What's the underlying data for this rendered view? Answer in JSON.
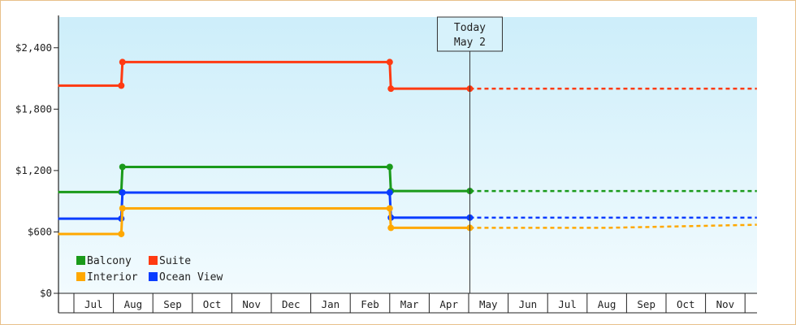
{
  "chart_data": {
    "type": "line",
    "step": true,
    "y_ticks": [
      {
        "value": 0,
        "label": "$0"
      },
      {
        "value": 600,
        "label": "$600"
      },
      {
        "value": 1200,
        "label": "$1,200"
      },
      {
        "value": 1800,
        "label": "$1,800"
      },
      {
        "value": 2400,
        "label": "$2,400"
      }
    ],
    "ylim": [
      0,
      2700
    ],
    "months": [
      "Jul",
      "Aug",
      "Sep",
      "Oct",
      "Nov",
      "Dec",
      "Jan",
      "Feb",
      "Mar",
      "Apr",
      "May",
      "Jun",
      "Jul",
      "Aug",
      "Sep",
      "Oct",
      "Nov"
    ],
    "xlim": [
      0,
      17.3
    ],
    "today": {
      "line1": "Today",
      "line2": "May 2",
      "x": 10.03
    },
    "grid": "x-only (month separators)",
    "background": "gradient light blue",
    "legend": {
      "position": "bottom-left",
      "items": [
        {
          "label": "Balcony",
          "color": "#1a9a1a"
        },
        {
          "label": "Suite",
          "color": "#ff3a12"
        },
        {
          "label": "Interior",
          "color": "#ffa800"
        },
        {
          "label": "Ocean View",
          "color": "#0a3cff"
        }
      ]
    },
    "series": [
      {
        "name": "Suite",
        "color": "#ff3a12",
        "points": [
          [
            -0.4,
            2030
          ],
          [
            1.2,
            2030
          ],
          [
            1.23,
            2260
          ],
          [
            8.0,
            2260
          ],
          [
            8.03,
            2000
          ],
          [
            10.03,
            2000
          ]
        ],
        "forecast": [
          [
            10.03,
            2000
          ],
          [
            17.3,
            2000
          ]
        ]
      },
      {
        "name": "Balcony",
        "color": "#1a9a1a",
        "points": [
          [
            -0.4,
            990
          ],
          [
            1.2,
            990
          ],
          [
            1.23,
            1235
          ],
          [
            8.0,
            1235
          ],
          [
            8.03,
            1000
          ],
          [
            10.03,
            1000
          ]
        ],
        "forecast": [
          [
            10.03,
            1000
          ],
          [
            17.3,
            1000
          ]
        ]
      },
      {
        "name": "Ocean View",
        "color": "#0a3cff",
        "points": [
          [
            -0.4,
            730
          ],
          [
            1.2,
            730
          ],
          [
            1.23,
            985
          ],
          [
            8.0,
            985
          ],
          [
            8.03,
            740
          ],
          [
            10.03,
            740
          ]
        ],
        "forecast": [
          [
            10.03,
            740
          ],
          [
            17.3,
            740
          ]
        ]
      },
      {
        "name": "Interior",
        "color": "#ffa800",
        "points": [
          [
            -0.4,
            580
          ],
          [
            1.2,
            580
          ],
          [
            1.23,
            830
          ],
          [
            8.0,
            830
          ],
          [
            8.03,
            640
          ],
          [
            10.03,
            640
          ]
        ],
        "forecast": [
          [
            10.03,
            640
          ],
          [
            13.5,
            640
          ],
          [
            17.3,
            670
          ]
        ]
      }
    ]
  }
}
